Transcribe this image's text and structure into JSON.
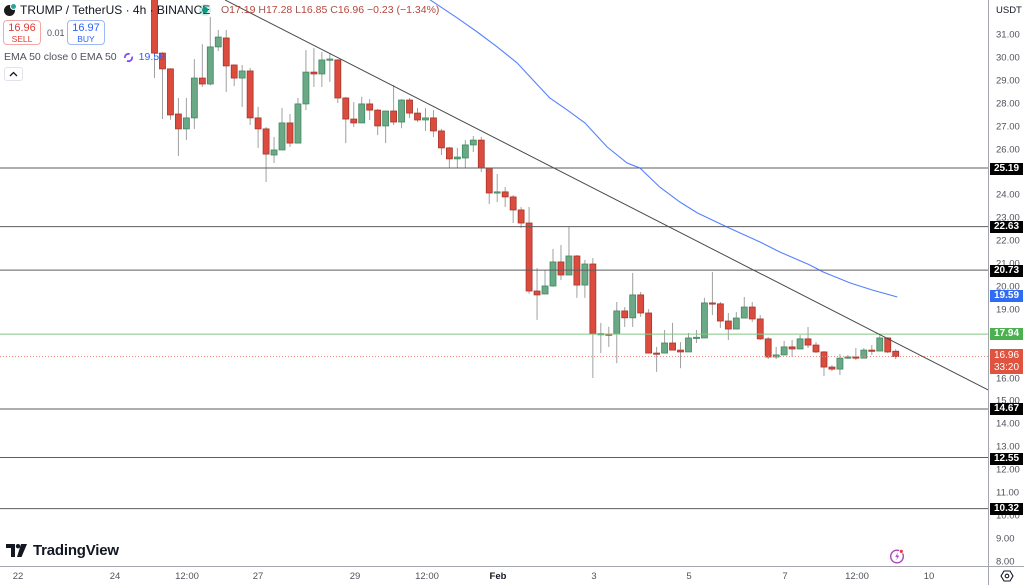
{
  "header": {
    "symbol_title": "TRUMP / TetherUS · 4h · BINANCE",
    "status": "market-open",
    "ohlc": {
      "o_label": "O",
      "o": "17.19",
      "h_label": "H",
      "h": "17.28",
      "l_label": "L",
      "l": "16.85",
      "c_label": "C",
      "c": "16.96",
      "change": "−0.23 (−1.34%)"
    }
  },
  "trade": {
    "sell_price": "16.96",
    "sell_label": "SELL",
    "spread": "0.01",
    "buy_price": "16.97",
    "buy_label": "BUY"
  },
  "indicator": {
    "label": "EMA 50 close 0 EMA 50",
    "value": "19.59",
    "collapse_icon": "chevron-up"
  },
  "price_axis": {
    "currency": "USDT ▾",
    "ticks": [
      "31.00",
      "30.00",
      "29.00",
      "28.00",
      "27.00",
      "26.00",
      "25.00",
      "24.00",
      "23.00",
      "22.00",
      "21.00",
      "20.00",
      "19.00",
      "18.00",
      "17.00",
      "16.00",
      "15.00",
      "14.00",
      "13.00",
      "12.00",
      "11.00",
      "10.00",
      "9.00",
      "8.00"
    ],
    "badges": [
      {
        "text": "25.19"
      },
      {
        "text": "22.63"
      },
      {
        "text": "20.73"
      },
      {
        "text": "19.59"
      },
      {
        "text": "17.94"
      },
      {
        "text": "16.96",
        "countdown": "33:20"
      },
      {
        "text": "14.67"
      },
      {
        "text": "12.55"
      },
      {
        "text": "10.32"
      }
    ]
  },
  "time_axis": {
    "labels": [
      "22",
      "24",
      "12:00",
      "27",
      "29",
      "12:00",
      "Feb",
      "3",
      "5",
      "7",
      "12:00",
      "10"
    ]
  },
  "branding": {
    "name": "TradingView"
  },
  "colors": {
    "up": "#6aa886",
    "up_border": "#3f8a62",
    "down": "#db4c3f",
    "down_border": "#a8352a",
    "wick": "#a0a0a0",
    "ema": "#2962ff",
    "level": "#5d5d5d",
    "level_green": "#81c784",
    "last_price": "#e0533f"
  },
  "chart_data": {
    "type": "candlestick",
    "title": "TRUMP / TetherUS · 4h · BINANCE",
    "xlabel": "",
    "ylabel": "USDT",
    "ylim": [
      7.5,
      32.5
    ],
    "grid": false,
    "x_tick_labels": [
      "22",
      "24",
      "12:00",
      "27",
      "29",
      "12:00",
      "Feb",
      "3",
      "5",
      "7",
      "12:00",
      "10"
    ],
    "y_tick_labels": [
      "31.00",
      "30.00",
      "29.00",
      "28.00",
      "27.00",
      "26.00",
      "25.00",
      "24.00",
      "23.00",
      "22.00",
      "21.00",
      "20.00",
      "19.00",
      "18.00",
      "17.00",
      "16.00",
      "15.00",
      "14.00",
      "13.00",
      "12.00",
      "11.00",
      "10.00",
      "9.00",
      "8.00"
    ],
    "candle_fields": [
      "open",
      "high",
      "low",
      "close"
    ],
    "candles": [
      [
        33.2,
        33.4,
        29.12,
        30.21
      ],
      [
        30.21,
        30.25,
        27.33,
        29.52
      ],
      [
        29.52,
        29.55,
        27.3,
        27.51
      ],
      [
        27.55,
        28.25,
        25.72,
        26.9
      ],
      [
        26.9,
        28.25,
        26.41,
        27.38
      ],
      [
        27.38,
        29.95,
        26.9,
        29.12
      ],
      [
        29.12,
        30.6,
        28.73,
        28.86
      ],
      [
        28.86,
        31.79,
        28.8,
        30.48
      ],
      [
        30.48,
        31.22,
        30.3,
        30.91
      ],
      [
        30.87,
        31.22,
        28.51,
        29.65
      ],
      [
        29.69,
        29.72,
        28.77,
        29.12
      ],
      [
        29.12,
        29.69,
        27.86,
        29.43
      ],
      [
        29.43,
        29.56,
        27.07,
        27.38
      ],
      [
        27.38,
        27.86,
        26.07,
        26.9
      ],
      [
        26.9,
        26.98,
        24.58,
        25.8
      ],
      [
        25.76,
        26.55,
        25.41,
        25.98
      ],
      [
        25.98,
        27.81,
        25.98,
        27.16
      ],
      [
        27.16,
        27.55,
        26.11,
        26.28
      ],
      [
        26.28,
        28.25,
        26.28,
        27.99
      ],
      [
        27.99,
        30.34,
        27.72,
        29.38
      ],
      [
        29.38,
        30.43,
        28.73,
        29.3
      ],
      [
        29.3,
        30.26,
        28.73,
        29.91
      ],
      [
        29.91,
        30.21,
        28.95,
        29.95
      ],
      [
        29.91,
        29.95,
        28.03,
        28.25
      ],
      [
        28.25,
        28.3,
        26.28,
        27.33
      ],
      [
        27.33,
        28.07,
        26.98,
        27.16
      ],
      [
        27.16,
        28.3,
        27.16,
        27.99
      ],
      [
        27.99,
        28.2,
        27.29,
        27.72
      ],
      [
        27.72,
        27.77,
        26.63,
        27.03
      ],
      [
        27.03,
        27.7,
        26.28,
        27.68
      ],
      [
        27.68,
        28.82,
        27.07,
        27.2
      ],
      [
        27.2,
        28.2,
        26.93,
        28.16
      ],
      [
        28.16,
        28.25,
        27.38,
        27.59
      ],
      [
        27.59,
        27.81,
        27.2,
        27.29
      ],
      [
        27.29,
        27.81,
        26.81,
        27.38
      ],
      [
        27.38,
        27.72,
        26.55,
        26.81
      ],
      [
        26.81,
        26.9,
        25.76,
        26.07
      ],
      [
        26.07,
        26.11,
        25.19,
        25.59
      ],
      [
        25.59,
        26.07,
        25.19,
        25.67
      ],
      [
        25.63,
        26.41,
        25.19,
        26.2
      ],
      [
        26.2,
        26.59,
        25.89,
        26.41
      ],
      [
        26.41,
        26.55,
        25.02,
        25.19
      ],
      [
        25.19,
        25.2,
        23.62,
        24.1
      ],
      [
        24.1,
        24.93,
        23.7,
        24.15
      ],
      [
        24.15,
        24.36,
        23.49,
        23.93
      ],
      [
        23.93,
        24.01,
        22.79,
        23.36
      ],
      [
        23.36,
        23.49,
        22.57,
        22.79
      ],
      [
        22.79,
        23.49,
        19.7,
        19.82
      ],
      [
        19.82,
        20.82,
        18.56,
        19.65
      ],
      [
        19.69,
        20.74,
        19.69,
        20.04
      ],
      [
        20.04,
        21.66,
        20.0,
        21.09
      ],
      [
        21.09,
        21.83,
        20.3,
        20.52
      ],
      [
        20.52,
        22.62,
        20.52,
        21.35
      ],
      [
        21.35,
        21.39,
        19.52,
        20.08
      ],
      [
        20.08,
        21.18,
        19.52,
        21.0
      ],
      [
        21.0,
        21.26,
        16.02,
        17.94
      ],
      [
        17.94,
        18.43,
        17.11,
        17.96
      ],
      [
        17.94,
        18.26,
        17.38,
        17.9
      ],
      [
        17.94,
        19.34,
        16.67,
        18.95
      ],
      [
        18.95,
        19.12,
        18.25,
        18.65
      ],
      [
        18.65,
        20.61,
        18.25,
        19.65
      ],
      [
        19.65,
        19.78,
        18.69,
        18.86
      ],
      [
        18.86,
        19.03,
        17.11,
        17.11
      ],
      [
        17.11,
        17.38,
        16.29,
        17.07
      ],
      [
        17.11,
        18.12,
        17.11,
        17.55
      ],
      [
        17.55,
        18.43,
        17.24,
        17.24
      ],
      [
        17.24,
        17.59,
        16.45,
        17.16
      ],
      [
        17.16,
        17.99,
        17.16,
        17.77
      ],
      [
        17.77,
        18.12,
        17.55,
        17.8
      ],
      [
        17.77,
        19.52,
        17.77,
        19.3
      ],
      [
        19.3,
        20.65,
        18.77,
        19.26
      ],
      [
        19.26,
        19.34,
        18.21,
        18.51
      ],
      [
        18.51,
        18.86,
        17.68,
        18.16
      ],
      [
        18.16,
        18.9,
        18.16,
        18.64
      ],
      [
        18.64,
        19.56,
        18.64,
        19.12
      ],
      [
        19.12,
        19.34,
        18.47,
        18.6
      ],
      [
        18.6,
        18.77,
        17.68,
        17.73
      ],
      [
        17.73,
        17.81,
        16.85,
        16.94
      ],
      [
        16.94,
        17.38,
        16.85,
        17.03
      ],
      [
        17.03,
        17.64,
        17.03,
        17.38
      ],
      [
        17.38,
        17.68,
        16.94,
        17.29
      ],
      [
        17.29,
        17.9,
        17.29,
        17.73
      ],
      [
        17.73,
        18.25,
        17.33,
        17.46
      ],
      [
        17.46,
        17.59,
        17.11,
        17.16
      ],
      [
        17.16,
        17.2,
        16.11,
        16.5
      ],
      [
        16.5,
        16.58,
        16.33,
        16.41
      ],
      [
        16.41,
        17.07,
        16.15,
        16.89
      ],
      [
        16.89,
        17.03,
        16.85,
        16.94
      ],
      [
        16.94,
        17.33,
        16.81,
        16.89
      ],
      [
        16.89,
        17.33,
        16.89,
        17.24
      ],
      [
        17.24,
        17.46,
        17.03,
        17.2
      ],
      [
        17.2,
        17.9,
        17.2,
        17.77
      ],
      [
        17.77,
        17.81,
        17.11,
        17.16
      ],
      [
        17.19,
        17.28,
        16.85,
        16.96
      ]
    ],
    "series": [
      {
        "name": "EMA 50",
        "type": "line",
        "last_value": 19.59,
        "points_index_price": [
          [
            31,
            33.9
          ],
          [
            34.6,
            32.53
          ],
          [
            38.0,
            31.74
          ],
          [
            40.5,
            31.13
          ],
          [
            43.0,
            30.48
          ],
          [
            45.5,
            29.78
          ],
          [
            47.5,
            29.03
          ],
          [
            49.6,
            28.25
          ],
          [
            51.8,
            27.72
          ],
          [
            54.0,
            27.16
          ],
          [
            56.8,
            26.11
          ],
          [
            59.3,
            25.41
          ],
          [
            60.9,
            25.19
          ],
          [
            63.4,
            24.36
          ],
          [
            65.9,
            23.71
          ],
          [
            68.1,
            23.23
          ],
          [
            71.8,
            22.62
          ],
          [
            75.97,
            21.96
          ],
          [
            78.5,
            21.52
          ],
          [
            82.2,
            20.96
          ],
          [
            83.9,
            20.65
          ],
          [
            87.3,
            20.17
          ],
          [
            90.1,
            19.86
          ],
          [
            93.2,
            19.56
          ]
        ]
      }
    ],
    "horizontal_levels": [
      {
        "price": 25.19,
        "style": "level"
      },
      {
        "price": 22.63,
        "style": "level"
      },
      {
        "price": 20.73,
        "style": "level"
      },
      {
        "price": 17.94,
        "style": "level_green"
      },
      {
        "price": 14.67,
        "style": "level"
      },
      {
        "price": 12.55,
        "style": "level"
      },
      {
        "price": 10.32,
        "style": "level"
      }
    ],
    "last_price": 16.96,
    "trendline": {
      "from": {
        "index": 8.85,
        "price": 32.53
      },
      "to": {
        "index": 104.6,
        "price": 15.5
      }
    }
  }
}
